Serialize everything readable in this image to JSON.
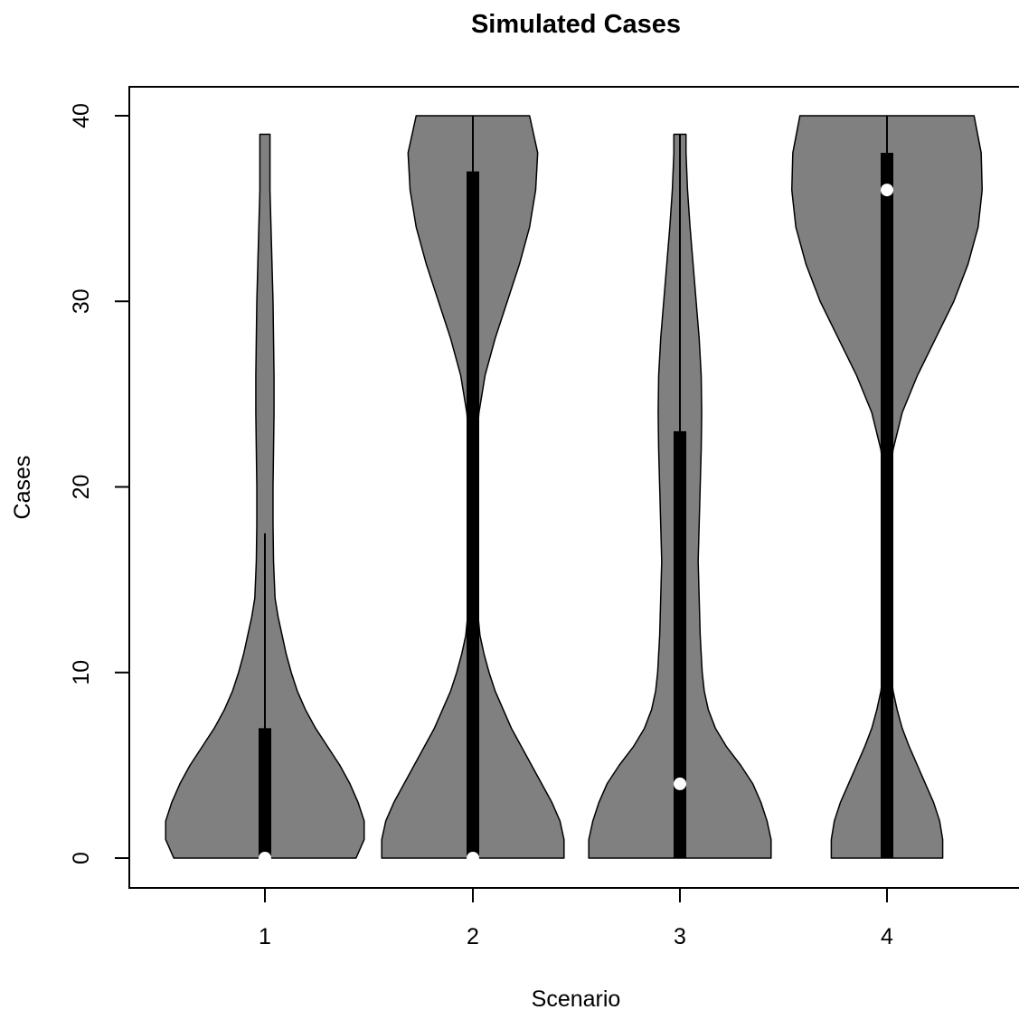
{
  "chart_data": {
    "type": "violin",
    "title": "Simulated Cases",
    "xlabel": "Scenario",
    "ylabel": "Cases",
    "categories": [
      "1",
      "2",
      "3",
      "4"
    ],
    "ylim": [
      0,
      40
    ],
    "yticks": [
      0,
      10,
      20,
      30,
      40
    ],
    "grid": false,
    "colors": {
      "violin_fill": "#808080",
      "outline": "#000000",
      "median_dot": "#ffffff"
    },
    "violins": [
      {
        "category": "1",
        "min": 0,
        "max": 39,
        "q1": 0,
        "median": 0,
        "q3": 7,
        "whisker_low": 0,
        "whisker_high": 17.5,
        "density": [
          [
            0,
            0.9
          ],
          [
            1,
            0.98
          ],
          [
            2,
            0.98
          ],
          [
            3,
            0.92
          ],
          [
            4,
            0.84
          ],
          [
            5,
            0.74
          ],
          [
            6,
            0.62
          ],
          [
            7,
            0.5
          ],
          [
            8,
            0.4
          ],
          [
            9,
            0.32
          ],
          [
            10,
            0.26
          ],
          [
            11,
            0.21
          ],
          [
            12,
            0.17
          ],
          [
            13,
            0.13
          ],
          [
            14,
            0.1
          ],
          [
            16,
            0.085
          ],
          [
            18,
            0.08
          ],
          [
            20,
            0.08
          ],
          [
            22,
            0.085
          ],
          [
            24,
            0.09
          ],
          [
            26,
            0.09
          ],
          [
            28,
            0.085
          ],
          [
            30,
            0.08
          ],
          [
            32,
            0.07
          ],
          [
            34,
            0.06
          ],
          [
            36,
            0.05
          ],
          [
            38,
            0.05
          ],
          [
            39,
            0.05
          ]
        ]
      },
      {
        "category": "2",
        "min": 0,
        "max": 40,
        "q1": 0,
        "median": 0,
        "q3": 37,
        "whisker_low": 0,
        "whisker_high": 40,
        "density": [
          [
            0,
            0.9
          ],
          [
            1,
            0.9
          ],
          [
            2,
            0.86
          ],
          [
            3,
            0.78
          ],
          [
            4,
            0.68
          ],
          [
            5,
            0.58
          ],
          [
            6,
            0.48
          ],
          [
            7,
            0.38
          ],
          [
            8,
            0.3
          ],
          [
            9,
            0.22
          ],
          [
            10,
            0.16
          ],
          [
            11,
            0.11
          ],
          [
            12,
            0.07
          ],
          [
            14,
            0.035
          ],
          [
            16,
            0.01
          ],
          [
            17,
            0.005
          ],
          [
            18,
            0.01
          ],
          [
            20,
            0.02
          ],
          [
            22,
            0.03
          ],
          [
            24,
            0.06
          ],
          [
            26,
            0.12
          ],
          [
            28,
            0.22
          ],
          [
            30,
            0.34
          ],
          [
            32,
            0.46
          ],
          [
            34,
            0.56
          ],
          [
            36,
            0.62
          ],
          [
            38,
            0.64
          ],
          [
            40,
            0.56
          ]
        ]
      },
      {
        "category": "3",
        "min": 0,
        "max": 39,
        "q1": 0,
        "median": 4,
        "q3": 23,
        "whisker_low": 0,
        "whisker_high": 39,
        "density": [
          [
            0,
            0.9
          ],
          [
            1,
            0.9
          ],
          [
            2,
            0.86
          ],
          [
            3,
            0.8
          ],
          [
            4,
            0.72
          ],
          [
            5,
            0.6
          ],
          [
            6,
            0.46
          ],
          [
            7,
            0.35
          ],
          [
            8,
            0.28
          ],
          [
            9,
            0.24
          ],
          [
            10,
            0.22
          ],
          [
            11,
            0.21
          ],
          [
            12,
            0.2
          ],
          [
            14,
            0.19
          ],
          [
            16,
            0.18
          ],
          [
            18,
            0.19
          ],
          [
            20,
            0.2
          ],
          [
            22,
            0.21
          ],
          [
            24,
            0.215
          ],
          [
            26,
            0.21
          ],
          [
            28,
            0.19
          ],
          [
            30,
            0.16
          ],
          [
            32,
            0.13
          ],
          [
            34,
            0.1
          ],
          [
            36,
            0.075
          ],
          [
            38,
            0.06
          ],
          [
            39,
            0.06
          ]
        ]
      },
      {
        "category": "4",
        "min": 0,
        "max": 40,
        "q1": 0,
        "median": 36,
        "q3": 38,
        "whisker_low": 0,
        "whisker_high": 40,
        "density": [
          [
            0,
            0.55
          ],
          [
            1,
            0.55
          ],
          [
            2,
            0.52
          ],
          [
            3,
            0.46
          ],
          [
            4,
            0.38
          ],
          [
            5,
            0.3
          ],
          [
            6,
            0.22
          ],
          [
            7,
            0.15
          ],
          [
            8,
            0.1
          ],
          [
            9,
            0.06
          ],
          [
            10,
            0.04
          ],
          [
            12,
            0.015
          ],
          [
            14,
            0.005
          ],
          [
            16,
            0.002
          ],
          [
            18,
            0.005
          ],
          [
            20,
            0.02
          ],
          [
            22,
            0.06
          ],
          [
            24,
            0.15
          ],
          [
            26,
            0.3
          ],
          [
            28,
            0.48
          ],
          [
            30,
            0.66
          ],
          [
            32,
            0.8
          ],
          [
            34,
            0.9
          ],
          [
            36,
            0.94
          ],
          [
            38,
            0.93
          ],
          [
            40,
            0.86
          ]
        ]
      }
    ]
  }
}
